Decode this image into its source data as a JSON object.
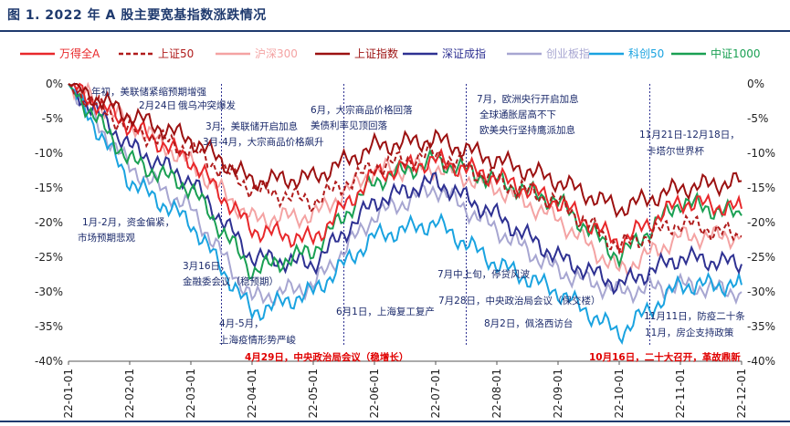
{
  "figure_title": "图 1. 2022 年 A 股主要宽基指数涨跌情况",
  "chart_data": {
    "type": "line",
    "x": [
      "22-01-01",
      "22-02-01",
      "22-03-01",
      "22-04-01",
      "22-05-01",
      "22-06-01",
      "22-07-01",
      "22-08-01",
      "22-09-01",
      "22-10-01",
      "22-11-01",
      "22-12-01"
    ],
    "x_range": [
      "22-01-01",
      "22-12-01"
    ],
    "ylim": [
      -40,
      0
    ],
    "yticks": [
      "0%",
      "-5%",
      "-10%",
      "-15%",
      "-20%",
      "-25%",
      "-30%",
      "-35%",
      "-40%"
    ],
    "right_axis": true,
    "grid": false,
    "legend_position": "top",
    "series": [
      {
        "name": "万得全A",
        "color": "#e8282b",
        "style": "solid",
        "values": [
          0,
          -6,
          -11,
          -21,
          -22.5,
          -13,
          -11,
          -13.5,
          -17,
          -23,
          -17,
          -18
        ]
      },
      {
        "name": "上证50",
        "color": "#b01c1c",
        "style": "dashed",
        "values": [
          0,
          -6.5,
          -9.5,
          -15,
          -17,
          -12,
          -10,
          -14,
          -17,
          -23.5,
          -20,
          -22
        ]
      },
      {
        "name": "沪深300",
        "color": "#f4a3a3",
        "style": "solid",
        "values": [
          0,
          -5.5,
          -11.5,
          -19.5,
          -19,
          -12.5,
          -12,
          -15,
          -19.5,
          -27,
          -22,
          -22
        ]
      },
      {
        "name": "上证指数",
        "color": "#9c1111",
        "style": "solid",
        "values": [
          0,
          -4.5,
          -8,
          -14,
          -13.5,
          -9,
          -8,
          -11,
          -14,
          -18,
          -15,
          -14
        ]
      },
      {
        "name": "深证成指",
        "color": "#2e3192",
        "style": "solid",
        "values": [
          0,
          -9,
          -14,
          -25,
          -26,
          -17,
          -14,
          -19,
          -25,
          -29,
          -25,
          -26
        ]
      },
      {
        "name": "创业板指",
        "color": "#a7a6d1",
        "style": "solid",
        "values": [
          0,
          -12,
          -18,
          -31,
          -29,
          -19,
          -15,
          -21,
          -27,
          -30,
          -29,
          -30
        ]
      },
      {
        "name": "科创50",
        "color": "#1aa3e0",
        "style": "solid",
        "values": [
          0,
          -14,
          -20,
          -33,
          -30,
          -22,
          -20,
          -26,
          -30,
          -36,
          -29,
          -29
        ]
      },
      {
        "name": "中证1000",
        "color": "#1aa053",
        "style": "solid",
        "values": [
          0,
          -11,
          -15,
          -27,
          -24,
          -14,
          -11,
          -14,
          -17,
          -25,
          -17,
          -19
        ]
      }
    ],
    "annotations": [
      {
        "text": "年初，美联储紧缩预期增强",
        "x": "22-01-01",
        "color": "#1b2a6b"
      },
      {
        "text": "2月24日",
        "x": "22-02-01",
        "color": "#1b2a6b"
      },
      {
        "text": "俄乌冲突爆发",
        "x": "22-02-01",
        "color": "#1b2a6b"
      },
      {
        "text": "3月，美联储开启加息",
        "x": "22-03-01",
        "color": "#1b2a6b"
      },
      {
        "text": "3月-4月，大宗商品价格飙升",
        "x": "22-03-01",
        "color": "#1b2a6b"
      },
      {
        "text": "1月-2月，资金偏紧，",
        "x": "22-01-01",
        "color": "#1b2a6b"
      },
      {
        "text": "市场预期悲观",
        "x": "22-01-01",
        "color": "#1b2a6b"
      },
      {
        "text": "3月16日，",
        "x": "22-03-01",
        "color": "#1b2a6b"
      },
      {
        "text": "金融委会议（稳预期）",
        "x": "22-03-01",
        "color": "#1b2a6b"
      },
      {
        "text": "4月-5月，",
        "x": "22-04-01",
        "color": "#1b2a6b"
      },
      {
        "text": "上海疫情形势严峻",
        "x": "22-04-01",
        "color": "#1b2a6b"
      },
      {
        "text": "4月29日，中央政治局会议（稳增长）",
        "x": "22-04-01",
        "color": "#e00000"
      },
      {
        "text": "6月，大宗商品价格回落",
        "x": "22-06-01",
        "color": "#1b2a6b"
      },
      {
        "text": "美债利率见顶回落",
        "x": "22-06-01",
        "color": "#1b2a6b"
      },
      {
        "text": "6月1日，上海复工复产",
        "x": "22-06-01",
        "color": "#1b2a6b"
      },
      {
        "text": "7月，欧洲央行开启加息",
        "x": "22-07-01",
        "color": "#1b2a6b"
      },
      {
        "text": "全球通胀居高不下",
        "x": "22-07-01",
        "color": "#1b2a6b"
      },
      {
        "text": "欧美央行坚持鹰派加息",
        "x": "22-07-01",
        "color": "#1b2a6b"
      },
      {
        "text": "7月中上旬，停贷风波",
        "x": "22-07-01",
        "color": "#1b2a6b"
      },
      {
        "text": "7月28日，中央政治局会议（保交楼）",
        "x": "22-07-01",
        "color": "#1b2a6b"
      },
      {
        "text": "8月2日，佩洛西访台",
        "x": "22-08-01",
        "color": "#1b2a6b"
      },
      {
        "text": "11月21日-12月18日，",
        "x": "22-11-01",
        "color": "#1b2a6b"
      },
      {
        "text": "卡塔尔世界杯",
        "x": "22-11-01",
        "color": "#1b2a6b"
      },
      {
        "text": "11月11日，防疫二十条",
        "x": "22-11-01",
        "color": "#1b2a6b"
      },
      {
        "text": "11月，房企支持政策",
        "x": "22-11-01",
        "color": "#1b2a6b"
      },
      {
        "text": "10月16日，二十大召开，革故鼎新",
        "x": "22-10-01",
        "color": "#e00000"
      }
    ],
    "event_lines": [
      "22-03-01",
      "22-05-01",
      "22-07-01",
      "22-10-01"
    ]
  }
}
